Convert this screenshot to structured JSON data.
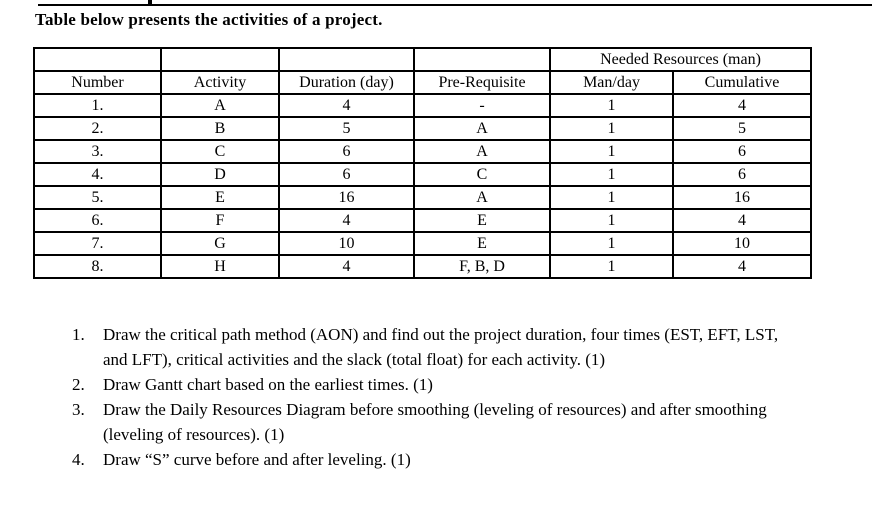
{
  "page": {
    "title": "Table below presents the activities of a project."
  },
  "table": {
    "group_header": "Needed Resources (man)",
    "columns": [
      "Number",
      "Activity",
      "Duration (day)",
      "Pre-Requisite",
      "Man/day",
      "Cumulative"
    ],
    "rows": [
      {
        "number": "1.",
        "activity": "A",
        "duration": "4",
        "prerequisite": "-",
        "man_day": "1",
        "cumulative": "4"
      },
      {
        "number": "2.",
        "activity": "B",
        "duration": "5",
        "prerequisite": "A",
        "man_day": "1",
        "cumulative": "5"
      },
      {
        "number": "3.",
        "activity": "C",
        "duration": "6",
        "prerequisite": "A",
        "man_day": "1",
        "cumulative": "6"
      },
      {
        "number": "4.",
        "activity": "D",
        "duration": "6",
        "prerequisite": "C",
        "man_day": "1",
        "cumulative": "6"
      },
      {
        "number": "5.",
        "activity": "E",
        "duration": "16",
        "prerequisite": "A",
        "man_day": "1",
        "cumulative": "16"
      },
      {
        "number": "6.",
        "activity": "F",
        "duration": "4",
        "prerequisite": "E",
        "man_day": "1",
        "cumulative": "4"
      },
      {
        "number": "7.",
        "activity": "G",
        "duration": "10",
        "prerequisite": "E",
        "man_day": "1",
        "cumulative": "10"
      },
      {
        "number": "8.",
        "activity": "H",
        "duration": "4",
        "prerequisite": "F, B, D",
        "man_day": "1",
        "cumulative": "4"
      }
    ]
  },
  "questions": {
    "items": [
      {
        "number": "1.",
        "text": "Draw the critical path method (AON) and find out the project duration, four times (EST, EFT, LST, and LFT), critical activities and the slack (total float) for each activity. (1)"
      },
      {
        "number": "2.",
        "text": "Draw Gantt chart based on the earliest times. (1)"
      },
      {
        "number": "3.",
        "text": "Draw the Daily Resources Diagram before smoothing (leveling of resources) and after smoothing (leveling of resources). (1)"
      },
      {
        "number": "4.",
        "text": "Draw “S” curve before and after leveling. (1)"
      }
    ]
  }
}
